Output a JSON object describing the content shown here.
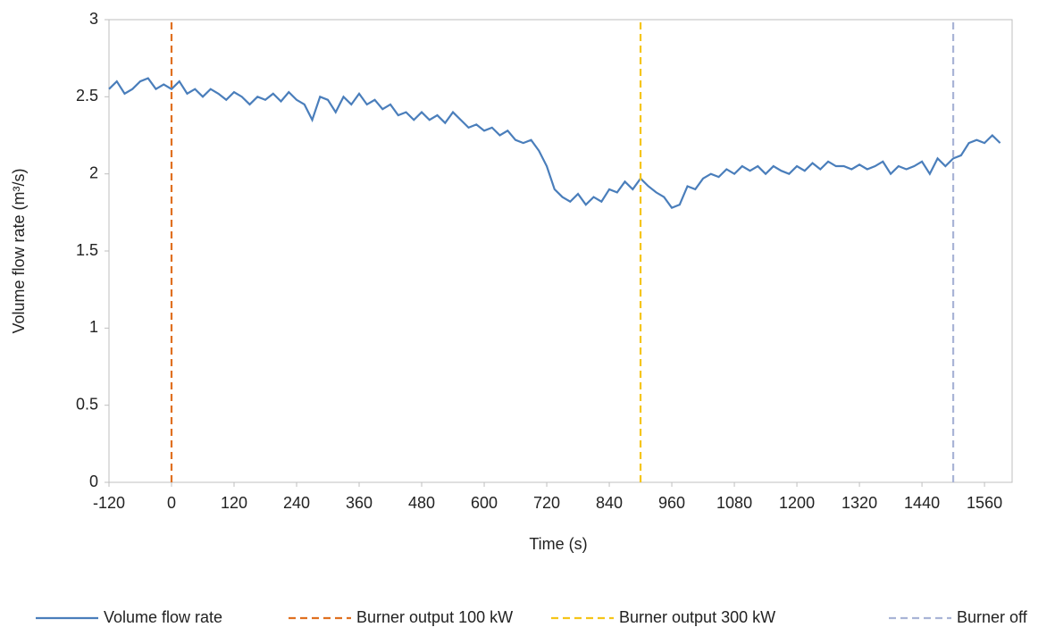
{
  "chart_data": {
    "type": "line",
    "x_label": "Time (s)",
    "y_label": "Volume flow rate (m³/s)",
    "xlim": [
      -120,
      1613
    ],
    "ylim": [
      0,
      3
    ],
    "xticks": [
      -120,
      0,
      120,
      240,
      360,
      480,
      600,
      720,
      840,
      960,
      1080,
      1200,
      1320,
      1440,
      1560
    ],
    "yticks": [
      0,
      0.5,
      1,
      1.5,
      2,
      2.5,
      3
    ],
    "legend": "bottom",
    "series": [
      {
        "name": "Volume flow rate",
        "color": "#4a7ebb",
        "dash": false,
        "x": [
          -120,
          -105,
          -90,
          -75,
          -60,
          -45,
          -30,
          -15,
          0,
          15,
          30,
          45,
          60,
          75,
          90,
          105,
          120,
          135,
          150,
          165,
          180,
          195,
          210,
          225,
          240,
          255,
          270,
          285,
          300,
          315,
          330,
          345,
          360,
          375,
          390,
          405,
          420,
          435,
          450,
          465,
          480,
          495,
          510,
          525,
          540,
          555,
          570,
          585,
          600,
          615,
          630,
          645,
          660,
          675,
          690,
          705,
          720,
          735,
          750,
          765,
          780,
          795,
          810,
          825,
          840,
          855,
          870,
          885,
          900,
          915,
          930,
          945,
          960,
          975,
          990,
          1005,
          1020,
          1035,
          1050,
          1065,
          1080,
          1095,
          1110,
          1125,
          1140,
          1155,
          1170,
          1185,
          1200,
          1215,
          1230,
          1245,
          1260,
          1275,
          1290,
          1305,
          1320,
          1335,
          1350,
          1365,
          1380,
          1395,
          1410,
          1425,
          1440,
          1455,
          1470,
          1485,
          1500,
          1515,
          1530,
          1545,
          1560,
          1575,
          1590
        ],
        "values": [
          2.55,
          2.6,
          2.52,
          2.55,
          2.6,
          2.62,
          2.55,
          2.58,
          2.55,
          2.6,
          2.52,
          2.55,
          2.5,
          2.55,
          2.52,
          2.48,
          2.53,
          2.5,
          2.45,
          2.5,
          2.48,
          2.52,
          2.47,
          2.53,
          2.48,
          2.45,
          2.35,
          2.5,
          2.48,
          2.4,
          2.5,
          2.45,
          2.52,
          2.45,
          2.48,
          2.42,
          2.45,
          2.38,
          2.4,
          2.35,
          2.4,
          2.35,
          2.38,
          2.33,
          2.4,
          2.35,
          2.3,
          2.32,
          2.28,
          2.3,
          2.25,
          2.28,
          2.22,
          2.2,
          2.22,
          2.15,
          2.05,
          1.9,
          1.85,
          1.82,
          1.87,
          1.8,
          1.85,
          1.82,
          1.9,
          1.88,
          1.95,
          1.9,
          1.97,
          1.92,
          1.88,
          1.85,
          1.78,
          1.8,
          1.92,
          1.9,
          1.97,
          2.0,
          1.98,
          2.03,
          2.0,
          2.05,
          2.02,
          2.05,
          2.0,
          2.05,
          2.02,
          2.0,
          2.05,
          2.02,
          2.07,
          2.03,
          2.08,
          2.05,
          2.05,
          2.03,
          2.06,
          2.03,
          2.05,
          2.08,
          2.0,
          2.05,
          2.03,
          2.05,
          2.08,
          2.0,
          2.1,
          2.05,
          2.1,
          2.12,
          2.2,
          2.22,
          2.2,
          2.25,
          2.2
        ]
      },
      {
        "name": "Burner output 100 kW",
        "color": "#e07020",
        "dash": true,
        "x": [
          0,
          0
        ],
        "values": [
          0,
          3
        ]
      },
      {
        "name": "Burner output 300 kW",
        "color": "#f5c518",
        "dash": true,
        "x": [
          900,
          900
        ],
        "values": [
          0,
          3
        ]
      },
      {
        "name": "Burner off",
        "color": "#a9b4d6",
        "dash": true,
        "x": [
          1500,
          1500
        ],
        "values": [
          0,
          3
        ]
      }
    ]
  }
}
